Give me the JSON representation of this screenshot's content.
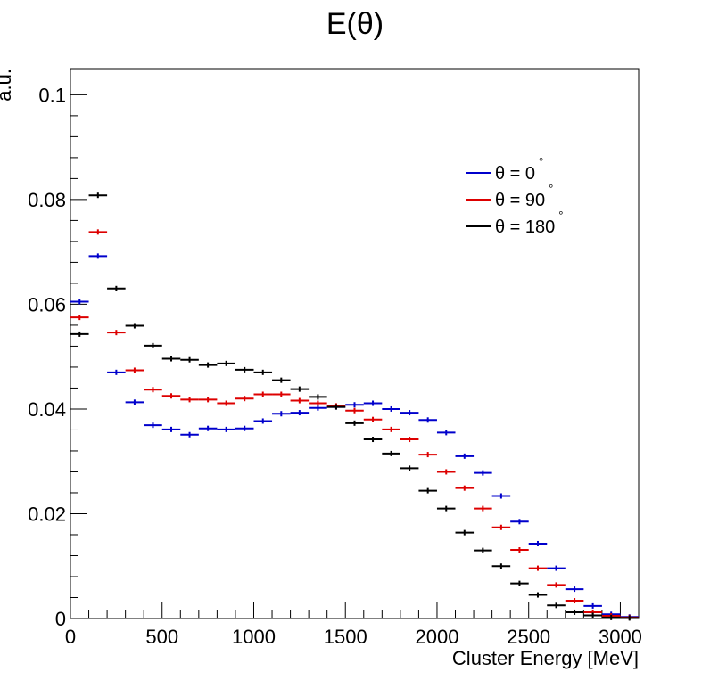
{
  "chart_data": {
    "type": "scatter",
    "title": "E(θ)",
    "xlabel": "Cluster Energy [MeV]",
    "ylabel": "a.u.",
    "xlim": [
      0,
      3100
    ],
    "ylim": [
      0,
      0.105
    ],
    "x_ticks": [
      0,
      500,
      1000,
      1500,
      2000,
      2500,
      3000
    ],
    "x_tick_labels": [
      "0",
      "500",
      "1000",
      "1500",
      "2000",
      "2500",
      "3000"
    ],
    "y_ticks": [
      0,
      0.02,
      0.04,
      0.06,
      0.08,
      0.1
    ],
    "y_tick_labels": [
      "0",
      "0.02",
      "0.04",
      "0.06",
      "0.08",
      "0.1"
    ],
    "bin_width": 100,
    "grid": false,
    "legend_position": "top-right",
    "x": [
      50,
      150,
      250,
      350,
      450,
      550,
      650,
      750,
      850,
      950,
      1050,
      1150,
      1250,
      1350,
      1450,
      1550,
      1650,
      1750,
      1850,
      1950,
      2050,
      2150,
      2250,
      2350,
      2450,
      2550,
      2650,
      2750,
      2850,
      2950,
      3050
    ],
    "series": [
      {
        "name": "θ = 0°",
        "label_main": "θ = 0",
        "label_sup": "°",
        "color": "#0000cc",
        "values": [
          0.0605,
          0.0692,
          0.047,
          0.0413,
          0.0369,
          0.0361,
          0.0351,
          0.0363,
          0.0361,
          0.0363,
          0.0377,
          0.0391,
          0.0393,
          0.0402,
          0.0404,
          0.0408,
          0.0411,
          0.04,
          0.0393,
          0.0379,
          0.0355,
          0.031,
          0.0278,
          0.0234,
          0.0185,
          0.0143,
          0.0096,
          0.0056,
          0.0024,
          0.0008,
          0.0003
        ]
      },
      {
        "name": "θ = 90°",
        "label_main": "θ = 90",
        "label_sup": "°",
        "color": "#dd0000",
        "values": [
          0.0575,
          0.0738,
          0.0546,
          0.0474,
          0.0437,
          0.0425,
          0.0418,
          0.0418,
          0.0411,
          0.042,
          0.0428,
          0.0428,
          0.0416,
          0.0411,
          0.0406,
          0.0397,
          0.038,
          0.0361,
          0.0342,
          0.0313,
          0.028,
          0.0249,
          0.021,
          0.0174,
          0.0131,
          0.0096,
          0.0064,
          0.0034,
          0.0012,
          0.0005,
          0.0002
        ]
      },
      {
        "name": "θ = 180°",
        "label_main": "θ = 180",
        "label_sup": "°",
        "color": "#000000",
        "values": [
          0.0543,
          0.0808,
          0.063,
          0.0559,
          0.0521,
          0.0496,
          0.0494,
          0.0484,
          0.0487,
          0.0475,
          0.047,
          0.0455,
          0.0438,
          0.0423,
          0.0404,
          0.0373,
          0.0342,
          0.0315,
          0.0287,
          0.0244,
          0.021,
          0.0164,
          0.013,
          0.01,
          0.0067,
          0.0045,
          0.0025,
          0.0012,
          0.0006,
          0.0002,
          0.0001
        ]
      }
    ]
  }
}
